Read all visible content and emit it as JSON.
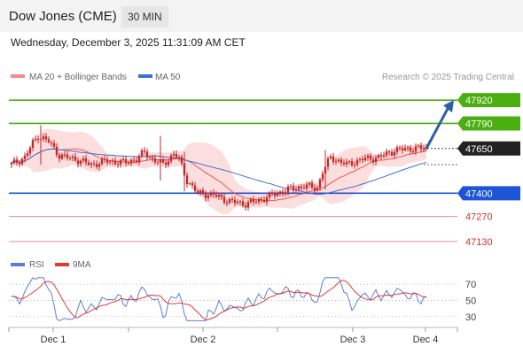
{
  "header": {
    "title": "Dow Jones (CME)",
    "interval": "30 MIN"
  },
  "timestamp": "Wednesday, December 3, 2025 11:31:09 AM CET",
  "legend": {
    "ma20": "MA 20 + Bollinger Bands",
    "ma50": "MA 50",
    "credit": "Research © 2025 Trading Central",
    "rsi": "RSI",
    "ma9": "9MA"
  },
  "colors": {
    "candle": "#c62828",
    "ma20": "#ef5350",
    "ma50": "#3f6fd0",
    "bollinger": "#fbd3d3",
    "resistance": "#4caf10",
    "support": "#1e54d6",
    "target": "#f28b8b",
    "last": "#222222",
    "arrow": "#2c5fa8",
    "rsi": "#5b7fd6"
  },
  "chart_data": [
    {
      "type": "candlestick",
      "title": "Dow Jones (CME) 30 MIN",
      "x_ticks": [
        "Dec 1",
        "Dec 2",
        "Dec 3",
        "Dec 4"
      ],
      "ylim": [
        47095,
        47985
      ],
      "last_price": "47650",
      "levels": [
        {
          "label": "47920",
          "value": 47920,
          "kind": "resistance"
        },
        {
          "label": "47790",
          "value": 47790,
          "kind": "resistance"
        },
        {
          "label": "47400",
          "value": 47400,
          "kind": "support"
        },
        {
          "label": "47270",
          "value": 47270,
          "kind": "target"
        },
        {
          "label": "47130",
          "value": 47130,
          "kind": "target"
        }
      ],
      "forecast": {
        "from": 47650,
        "to": 47920,
        "direction": "up"
      },
      "series": [
        {
          "name": "MA 20 + Bollinger Bands"
        },
        {
          "name": "MA 50"
        }
      ]
    },
    {
      "type": "line",
      "title": "RSI",
      "ylim": [
        20,
        80
      ],
      "y_ticks": [
        "70",
        "50",
        "30"
      ],
      "series": [
        {
          "name": "RSI"
        },
        {
          "name": "9MA"
        }
      ]
    }
  ]
}
